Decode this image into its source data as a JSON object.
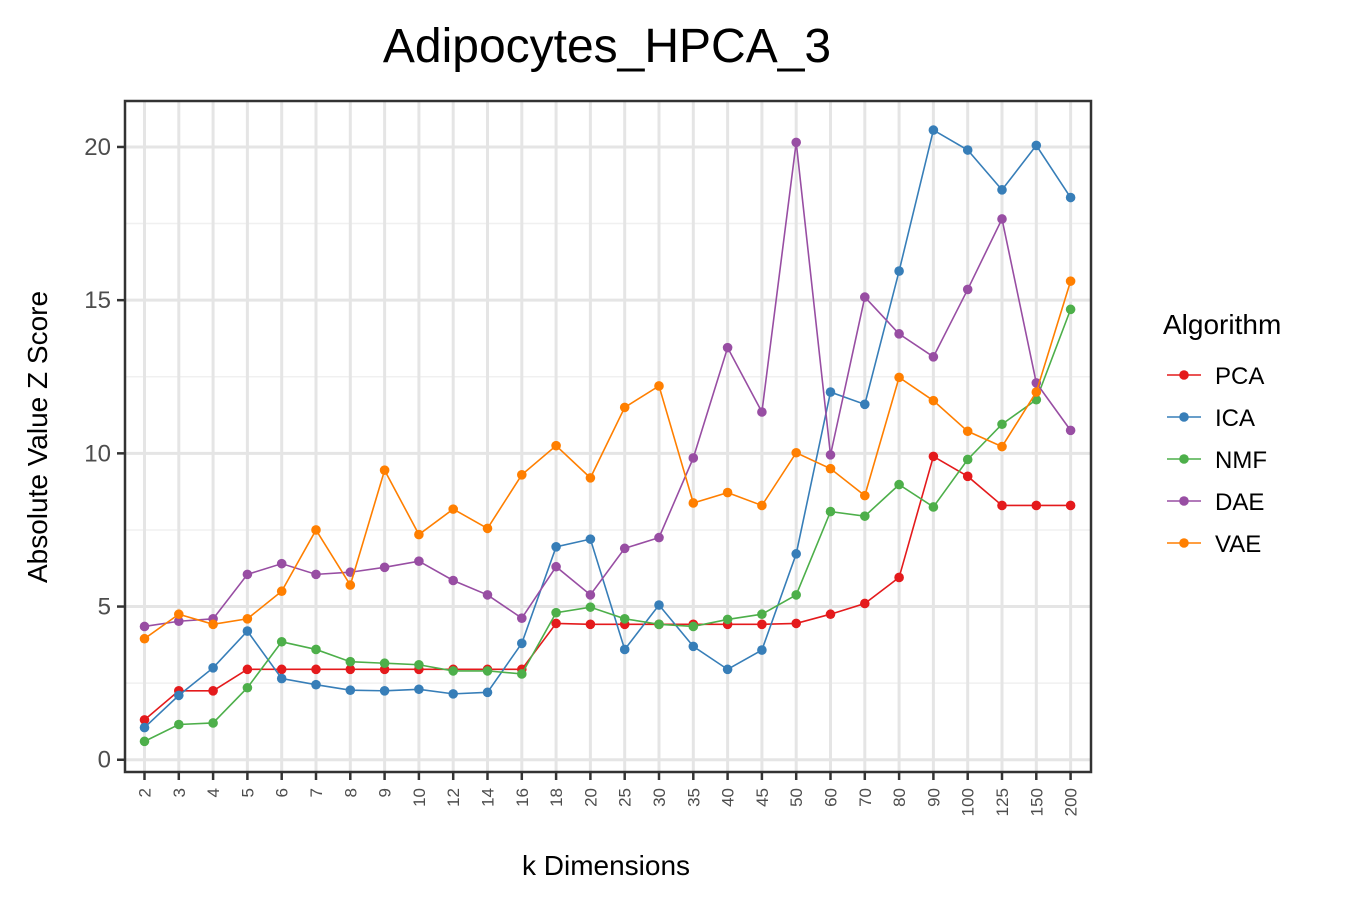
{
  "chart_data": {
    "type": "line",
    "title": "Adipocytes_HPCA_3",
    "xlabel": "k Dimensions",
    "ylabel": "Absolute Value Z Score",
    "categories": [
      "2",
      "3",
      "4",
      "5",
      "6",
      "7",
      "8",
      "9",
      "10",
      "12",
      "14",
      "16",
      "18",
      "20",
      "25",
      "30",
      "35",
      "40",
      "45",
      "50",
      "60",
      "70",
      "80",
      "90",
      "100",
      "125",
      "150",
      "200"
    ],
    "yticks": [
      "0",
      "5",
      "10",
      "15",
      "20"
    ],
    "ylim": [
      -0.4,
      21.5
    ],
    "grid": true,
    "legend": {
      "title": "Algorithm",
      "position": "right"
    },
    "series": [
      {
        "name": "PCA",
        "color": "#e41a1c",
        "values": [
          1.3,
          2.25,
          2.25,
          2.95,
          2.95,
          2.95,
          2.95,
          2.95,
          2.95,
          2.95,
          2.95,
          2.95,
          4.45,
          4.42,
          4.42,
          4.42,
          4.42,
          4.42,
          4.42,
          4.45,
          4.75,
          5.1,
          5.95,
          9.9,
          9.25,
          8.3,
          8.3,
          8.3
        ]
      },
      {
        "name": "ICA",
        "color": "#377eb8",
        "values": [
          1.05,
          2.1,
          3.0,
          4.2,
          2.65,
          2.45,
          2.27,
          2.25,
          2.3,
          2.15,
          2.2,
          3.8,
          6.95,
          7.2,
          3.6,
          5.05,
          3.7,
          2.95,
          3.58,
          6.72,
          12.0,
          11.6,
          15.95,
          20.55,
          19.9,
          18.6,
          20.05,
          18.35
        ]
      },
      {
        "name": "NMF",
        "color": "#4daf4a",
        "values": [
          0.6,
          1.15,
          1.2,
          2.35,
          3.85,
          3.6,
          3.2,
          3.15,
          3.1,
          2.9,
          2.9,
          2.8,
          4.8,
          4.98,
          4.6,
          4.42,
          4.35,
          4.58,
          4.75,
          5.38,
          8.1,
          7.95,
          8.98,
          8.25,
          9.8,
          10.95,
          11.75,
          14.7
        ]
      },
      {
        "name": "DAE",
        "color": "#984ea3",
        "values": [
          4.35,
          4.52,
          4.6,
          6.05,
          6.4,
          6.05,
          6.12,
          6.28,
          6.48,
          5.85,
          5.38,
          4.62,
          6.3,
          5.38,
          6.9,
          7.25,
          9.85,
          13.45,
          11.35,
          20.15,
          9.95,
          15.1,
          13.9,
          13.15,
          15.35,
          17.65,
          12.3,
          10.75
        ]
      },
      {
        "name": "VAE",
        "color": "#ff7f00",
        "values": [
          3.95,
          4.75,
          4.42,
          4.6,
          5.5,
          7.5,
          5.7,
          9.45,
          7.35,
          8.18,
          7.55,
          9.3,
          10.25,
          9.2,
          11.5,
          12.2,
          8.38,
          8.72,
          8.3,
          10.02,
          9.5,
          8.62,
          12.48,
          11.72,
          10.72,
          10.22,
          12.0,
          15.62
        ]
      }
    ]
  }
}
